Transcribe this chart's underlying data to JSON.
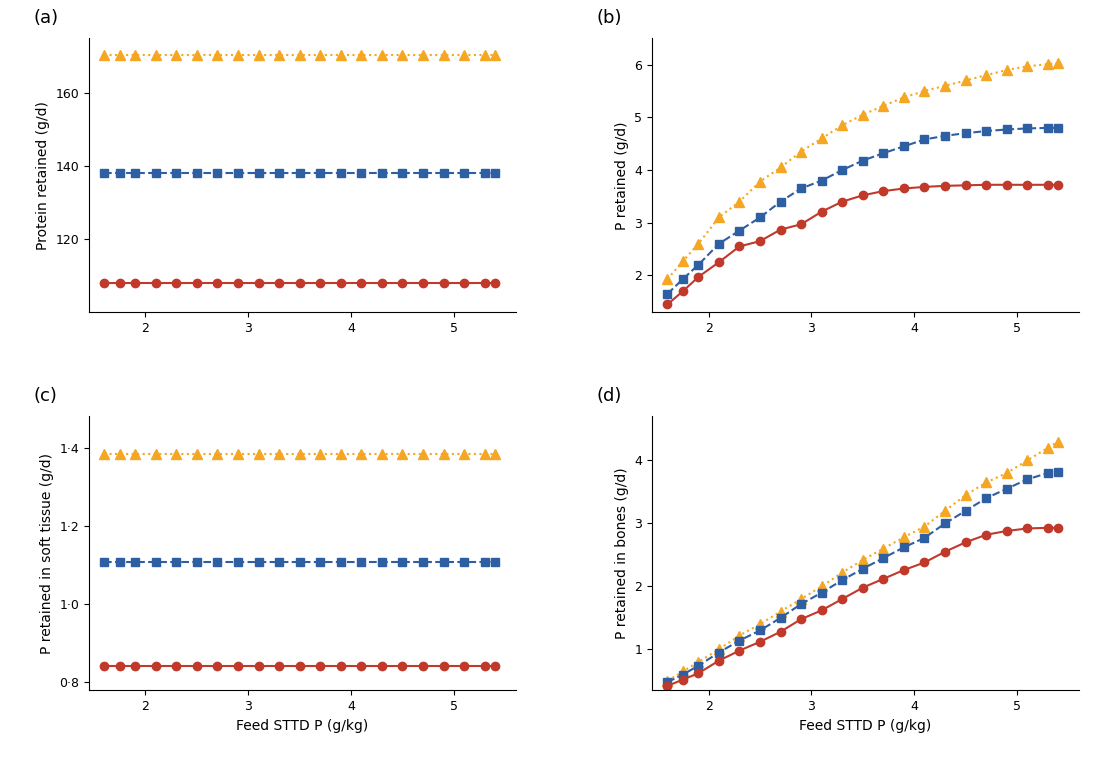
{
  "x_flat": [
    1.6,
    1.75,
    1.9,
    2.1,
    2.3,
    2.5,
    2.7,
    2.9,
    3.1,
    3.3,
    3.5,
    3.7,
    3.9,
    4.1,
    4.3,
    4.5,
    4.7,
    4.9,
    5.1,
    5.3,
    5.4
  ],
  "x_curve": [
    1.6,
    1.75,
    1.9,
    2.1,
    2.3,
    2.5,
    2.7,
    2.9,
    3.1,
    3.3,
    3.5,
    3.7,
    3.9,
    4.1,
    4.3,
    4.5,
    4.7,
    4.9,
    5.1,
    5.3,
    5.4
  ],
  "panel_a": {
    "orange": 170.5,
    "blue": 138.0,
    "red": 108.0,
    "ylabel": "Protein retained (g/d)",
    "ylim": [
      100,
      175
    ],
    "yticks": [
      120,
      140,
      160
    ]
  },
  "panel_b": {
    "orange": [
      1.93,
      2.27,
      2.6,
      3.1,
      3.4,
      3.78,
      4.05,
      4.35,
      4.6,
      4.85,
      5.05,
      5.22,
      5.38,
      5.5,
      5.6,
      5.7,
      5.8,
      5.9,
      5.97,
      6.01,
      6.03
    ],
    "blue": [
      1.65,
      1.93,
      2.2,
      2.6,
      2.85,
      3.1,
      3.4,
      3.65,
      3.8,
      4.0,
      4.18,
      4.32,
      4.45,
      4.58,
      4.65,
      4.7,
      4.74,
      4.77,
      4.79,
      4.8,
      4.8
    ],
    "red": [
      1.45,
      1.7,
      1.97,
      2.25,
      2.55,
      2.65,
      2.87,
      2.97,
      3.21,
      3.4,
      3.52,
      3.6,
      3.65,
      3.68,
      3.7,
      3.71,
      3.72,
      3.72,
      3.72,
      3.72,
      3.72
    ],
    "ylabel": "P retained (g/d)",
    "ylim": [
      1.3,
      6.5
    ],
    "yticks": [
      2,
      3,
      4,
      5,
      6
    ]
  },
  "panel_c": {
    "orange": 1.385,
    "blue": 1.108,
    "red": 0.842,
    "ylabel": "P retained in soft tissue (g/d)",
    "ylim": [
      0.78,
      1.48
    ],
    "yticks": [
      0.8,
      1.0,
      1.2,
      1.4
    ]
  },
  "panel_d": {
    "orange": [
      0.5,
      0.65,
      0.8,
      1.0,
      1.22,
      1.4,
      1.6,
      1.8,
      2.0,
      2.22,
      2.42,
      2.6,
      2.78,
      2.95,
      3.2,
      3.45,
      3.65,
      3.8,
      4.0,
      4.2,
      4.3
    ],
    "blue": [
      0.48,
      0.6,
      0.74,
      0.95,
      1.14,
      1.3,
      1.5,
      1.72,
      1.9,
      2.1,
      2.28,
      2.45,
      2.62,
      2.77,
      3.0,
      3.2,
      3.4,
      3.55,
      3.7,
      3.8,
      3.82
    ],
    "red": [
      0.42,
      0.52,
      0.62,
      0.82,
      0.98,
      1.12,
      1.28,
      1.48,
      1.62,
      1.8,
      1.98,
      2.12,
      2.26,
      2.38,
      2.55,
      2.7,
      2.82,
      2.88,
      2.92,
      2.93,
      2.93
    ],
    "ylabel": "P retained in bones (g/d)",
    "ylim": [
      0.35,
      4.7
    ],
    "yticks": [
      1,
      2,
      3,
      4
    ]
  },
  "colors": {
    "orange": "#F5A623",
    "blue": "#2E5FA3",
    "red": "#C0392B"
  },
  "xlabel": "Feed STTD P (g/kg)",
  "xlim": [
    1.45,
    5.6
  ],
  "xticks": [
    2,
    3,
    4,
    5
  ],
  "panel_labels": [
    "(a)",
    "(b)",
    "(c)",
    "(d)"
  ],
  "background_color": "#FFFFFF"
}
